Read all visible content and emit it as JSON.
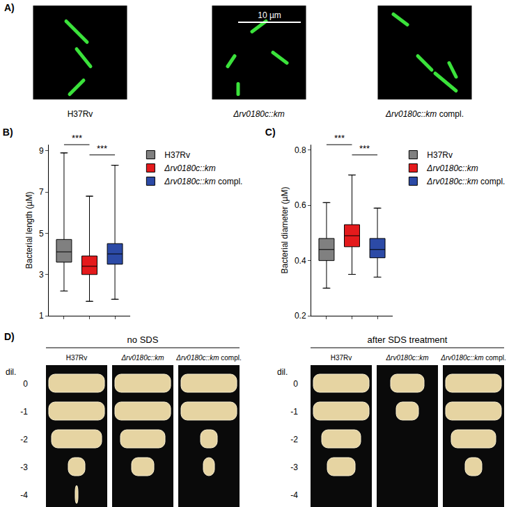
{
  "panel_a": {
    "label": "A)",
    "scale_bar": "10 µm",
    "strains": [
      "H37Rv",
      "Δrv0180c::km",
      "Δrv0180c::km compl."
    ]
  },
  "chart_data": [
    {
      "type": "box",
      "title": "B)",
      "ylabel": "Bacterial length (µM)",
      "categories": [
        "H37Rv",
        "Δrv0180c::km",
        "Δrv0180c::km compl."
      ],
      "series": [
        {
          "name": "H37Rv",
          "color": "#808080",
          "min": 2.2,
          "q1": 3.6,
          "median": 4.1,
          "q3": 4.7,
          "max": 8.9
        },
        {
          "name": "Δrv0180c::km",
          "color": "#e41a1c",
          "min": 1.7,
          "q1": 3.0,
          "median": 3.4,
          "q3": 3.9,
          "max": 6.8
        },
        {
          "name": "Δrv0180c::km compl.",
          "color": "#2c4aa6",
          "min": 1.8,
          "q1": 3.5,
          "median": 4.0,
          "q3": 4.5,
          "max": 8.3
        }
      ],
      "ylim": [
        1,
        9.3
      ],
      "yticks": [
        1,
        3,
        5,
        7,
        9
      ],
      "tick_labels": "y",
      "grid": false,
      "legend": "right",
      "significance": [
        {
          "from": "H37Rv",
          "to": "Δrv0180c::km",
          "label": "***"
        },
        {
          "from": "Δrv0180c::km",
          "to": "Δrv0180c::km compl.",
          "label": "***"
        }
      ]
    },
    {
      "type": "box",
      "title": "C)",
      "ylabel": "Bacterial diameter (µM)",
      "categories": [
        "H37Rv",
        "Δrv0180c::km",
        "Δrv0180c::km compl."
      ],
      "series": [
        {
          "name": "H37Rv",
          "color": "#808080",
          "min": 0.3,
          "q1": 0.4,
          "median": 0.44,
          "q3": 0.48,
          "max": 0.61
        },
        {
          "name": "Δrv0180c::km",
          "color": "#e41a1c",
          "min": 0.35,
          "q1": 0.45,
          "median": 0.49,
          "q3": 0.53,
          "max": 0.71
        },
        {
          "name": "Δrv0180c::km compl.",
          "color": "#2c4aa6",
          "min": 0.34,
          "q1": 0.41,
          "median": 0.44,
          "q3": 0.48,
          "max": 0.59
        }
      ],
      "ylim": [
        0.2,
        0.82
      ],
      "yticks": [
        0.2,
        0.4,
        0.6,
        0.8
      ],
      "tick_labels": "y",
      "grid": false,
      "legend": "right",
      "significance": [
        {
          "from": "H37Rv",
          "to": "Δrv0180c::km",
          "label": "***"
        },
        {
          "from": "Δrv0180c::km",
          "to": "Δrv0180c::km compl.",
          "label": "***"
        }
      ]
    }
  ],
  "panel_d": {
    "label": "D)",
    "row_title": "dil.",
    "dilutions": [
      0,
      -1,
      -2,
      -3,
      -4
    ],
    "plates": [
      {
        "condition": "no SDS",
        "strains": [
          "H37Rv",
          "Δrv0180c::km",
          "Δrv0180c::km compl."
        ],
        "growth": [
          [
            1,
            1,
            0.9,
            0.3,
            0.05
          ],
          [
            1,
            1,
            0.8,
            0.4,
            0
          ],
          [
            1,
            1,
            0.3,
            0.2,
            0
          ]
        ]
      },
      {
        "condition": "after SDS treatment",
        "strains": [
          "H37Rv",
          "Δrv0180c::km",
          "Δrv0180c::km compl."
        ],
        "growth": [
          [
            1,
            1,
            0.7,
            0.5,
            0
          ],
          [
            0.6,
            0.4,
            0,
            0,
            0
          ],
          [
            1,
            1,
            0.8,
            0.3,
            0
          ]
        ]
      }
    ]
  }
}
